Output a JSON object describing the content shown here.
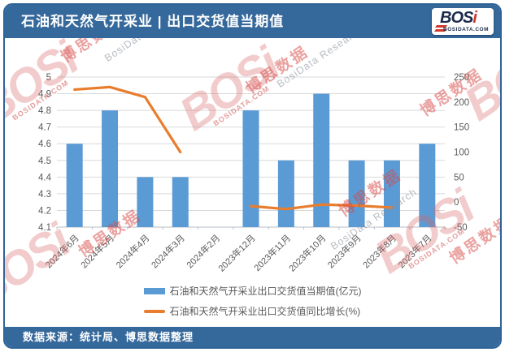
{
  "header": {
    "title": "石油和天然气开采业 | 出口交货值当期值"
  },
  "logo": {
    "name_main": "BOS",
    "name_accent": "i",
    "domain": "BOSIDATA.COM"
  },
  "footer": {
    "source": "数据来源：统计局、博思数据整理"
  },
  "watermarks": {
    "brand": "BOSi",
    "brand_cn": "博思数据",
    "research": "BosiData Research",
    "domain": "BOSIDATA.COM"
  },
  "colors": {
    "accent_blue": "#35689b",
    "bar": "#5b9bd5",
    "line": "#e87d2e",
    "grid": "#d9d9d9",
    "axis_line": "#b7bfc9",
    "axis_text": "#595959"
  },
  "legend": {
    "items": [
      {
        "label": "石油和天然气开采业出口交货值当期值(亿元)",
        "swatch": "bar"
      },
      {
        "label": "石油和天然气开采业出口交货值同比增长(%)",
        "swatch": "line"
      }
    ]
  },
  "chart_data": {
    "type": "bar",
    "title": "石油和天然气开采业 | 出口交货值当期值",
    "categories": [
      "2024年6月",
      "2024年5月",
      "2024年4月",
      "2024年3月",
      "2024年2月",
      "2023年12月",
      "2023年11月",
      "2023年10月",
      "2023年9月",
      "2023年8月",
      "2023年7月"
    ],
    "series": [
      {
        "name": "石油和天然气开采业出口交货值当期值(亿元)",
        "type": "bar",
        "axis": "left",
        "color": "#5b9bd5",
        "values": [
          4.6,
          4.8,
          4.4,
          4.4,
          null,
          4.8,
          4.5,
          4.9,
          4.5,
          4.5,
          4.6
        ]
      },
      {
        "name": "石油和天然气开采业出口交货值同比增长(%)",
        "type": "line",
        "axis": "right",
        "color": "#e87d2e",
        "values": [
          225,
          230,
          210,
          100,
          null,
          -8,
          -14,
          -5,
          -7,
          -11,
          null
        ]
      }
    ],
    "left_axis": {
      "min": 4.1,
      "max": 5,
      "step": 0.1,
      "ticks": [
        5,
        4.9,
        4.8,
        4.7,
        4.6,
        4.5,
        4.4,
        4.3,
        4.2,
        4.1
      ]
    },
    "right_axis": {
      "min": -50,
      "max": 250,
      "step": 50,
      "ticks": [
        250,
        200,
        150,
        100,
        50,
        0,
        -50
      ]
    },
    "grid": true,
    "legend_position": "bottom"
  }
}
